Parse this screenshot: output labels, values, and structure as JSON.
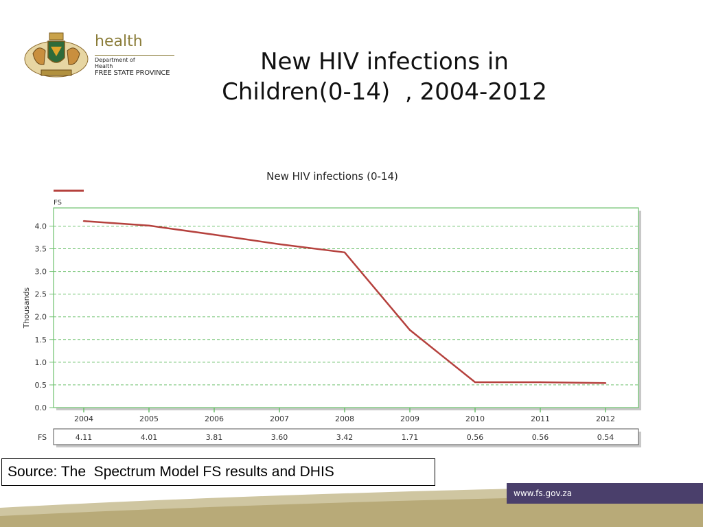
{
  "logo": {
    "brand": "health",
    "dept_line1": "Department of",
    "dept_line2": "Health",
    "province": "FREE STATE PROVINCE"
  },
  "slide": {
    "title_line1": "New HIV infections in",
    "title_line2": "Children(0-14)  , 2004-2012",
    "source": "Source: The  Spectrum Model FS results and DHIS",
    "url": "www.fs.gov.za"
  },
  "colors": {
    "series": "#b5413d",
    "grid": "#6cc06c",
    "footer_dark": "#4a3f6b",
    "footer_gold": "#b8aa78"
  },
  "chart_data": {
    "type": "line",
    "title": "New HIV infections (0-14)",
    "ylabel": "Thousands",
    "xlabel": "",
    "x": [
      "2004",
      "2005",
      "2006",
      "2007",
      "2008",
      "2009",
      "2010",
      "2011",
      "2012"
    ],
    "series": [
      {
        "name": "FS",
        "values": [
          4.11,
          4.01,
          3.81,
          3.6,
          3.42,
          1.71,
          0.56,
          0.56,
          0.54
        ]
      }
    ],
    "table_labels": [
      "4.11",
      "4.01",
      "3.81",
      "3.60",
      "3.42",
      "1.71",
      "0.56",
      "0.56",
      "0.54"
    ],
    "yticks": [
      "0.0",
      "0.5",
      "1.0",
      "1.5",
      "2.0",
      "2.5",
      "3.0",
      "3.5",
      "4.0"
    ],
    "ylim": [
      0,
      4.4
    ],
    "grid": true,
    "legend": "top-left"
  }
}
